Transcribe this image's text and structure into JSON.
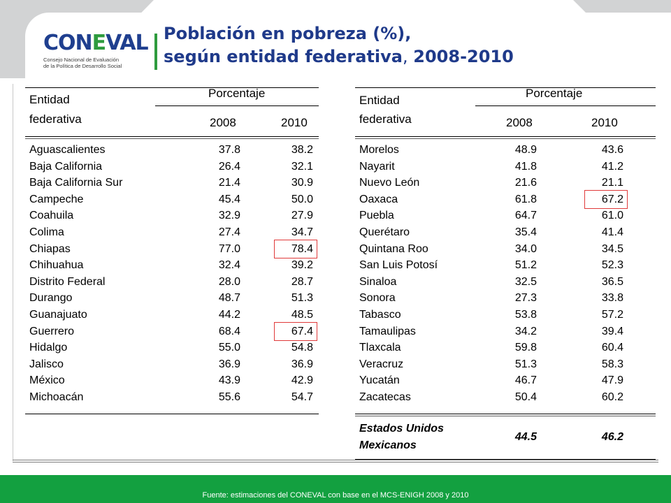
{
  "header": {
    "logo_word_1": "CON",
    "logo_word_e": "E",
    "logo_word_2": "VAL",
    "logo_sub_1": "Consejo Nacional de Evaluación",
    "logo_sub_2": "de la Política de Desarrollo Social",
    "title_line1": "Población en pobreza (%),",
    "title_line2_a": "según entidad federativa",
    "title_line2_b": ", ",
    "title_line2_c": "2008-2010"
  },
  "table_headers": {
    "entity_1": "Entidad",
    "entity_2": "federativa",
    "percent": "Porcentaje",
    "year_1": "2008",
    "year_2": "2010"
  },
  "left_rows": [
    {
      "name": "Aguascalientes",
      "v2008": "37.8",
      "v2010": "38.2"
    },
    {
      "name": "Baja California",
      "v2008": "26.4",
      "v2010": "32.1"
    },
    {
      "name": "Baja California Sur",
      "v2008": "21.4",
      "v2010": "30.9"
    },
    {
      "name": "Campeche",
      "v2008": "45.4",
      "v2010": "50.0"
    },
    {
      "name": "Coahuila",
      "v2008": "32.9",
      "v2010": "27.9"
    },
    {
      "name": "Colima",
      "v2008": "27.4",
      "v2010": "34.7"
    },
    {
      "name": "Chiapas",
      "v2008": "77.0",
      "v2010": "78.4"
    },
    {
      "name": "Chihuahua",
      "v2008": "32.4",
      "v2010": "39.2"
    },
    {
      "name": "Distrito Federal",
      "v2008": "28.0",
      "v2010": "28.7"
    },
    {
      "name": "Durango",
      "v2008": "48.7",
      "v2010": "51.3"
    },
    {
      "name": "Guanajuato",
      "v2008": "44.2",
      "v2010": "48.5"
    },
    {
      "name": "Guerrero",
      "v2008": "68.4",
      "v2010": "67.4"
    },
    {
      "name": "Hidalgo",
      "v2008": "55.0",
      "v2010": "54.8"
    },
    {
      "name": "Jalisco",
      "v2008": "36.9",
      "v2010": "36.9"
    },
    {
      "name": "México",
      "v2008": "43.9",
      "v2010": "42.9"
    },
    {
      "name": "Michoacán",
      "v2008": "55.6",
      "v2010": "54.7"
    }
  ],
  "right_rows": [
    {
      "name": "Morelos",
      "v2008": "48.9",
      "v2010": "43.6"
    },
    {
      "name": "Nayarit",
      "v2008": "41.8",
      "v2010": "41.2"
    },
    {
      "name": "Nuevo León",
      "v2008": "21.6",
      "v2010": "21.1"
    },
    {
      "name": "Oaxaca",
      "v2008": "61.8",
      "v2010": "67.2"
    },
    {
      "name": "Puebla",
      "v2008": "64.7",
      "v2010": "61.0"
    },
    {
      "name": "Querétaro",
      "v2008": "35.4",
      "v2010": "41.4"
    },
    {
      "name": "Quintana Roo",
      "v2008": "34.0",
      "v2010": "34.5"
    },
    {
      "name": "San Luis Potosí",
      "v2008": "51.2",
      "v2010": "52.3"
    },
    {
      "name": "Sinaloa",
      "v2008": "32.5",
      "v2010": "36.5"
    },
    {
      "name": "Sonora",
      "v2008": "27.3",
      "v2010": "33.8"
    },
    {
      "name": "Tabasco",
      "v2008": "53.8",
      "v2010": "57.2"
    },
    {
      "name": "Tamaulipas",
      "v2008": "34.2",
      "v2010": "39.4"
    },
    {
      "name": "Tlaxcala",
      "v2008": "59.8",
      "v2010": "60.4"
    },
    {
      "name": "Veracruz",
      "v2008": "51.3",
      "v2010": "58.3"
    },
    {
      "name": "Yucatán",
      "v2008": "46.7",
      "v2010": "47.9"
    },
    {
      "name": "Zacatecas",
      "v2008": "50.4",
      "v2010": "60.2"
    }
  ],
  "total": {
    "name_1": "Estados Unidos",
    "name_2": "Mexicanos",
    "v2008": "44.5",
    "v2010": "46.2"
  },
  "highlight_color": "#e03a3a",
  "footer": {
    "text": "Fuente: estimaciones del CONEVAL con base en el MCS-ENIGH 2008 y 2010",
    "color": "#13a040"
  }
}
